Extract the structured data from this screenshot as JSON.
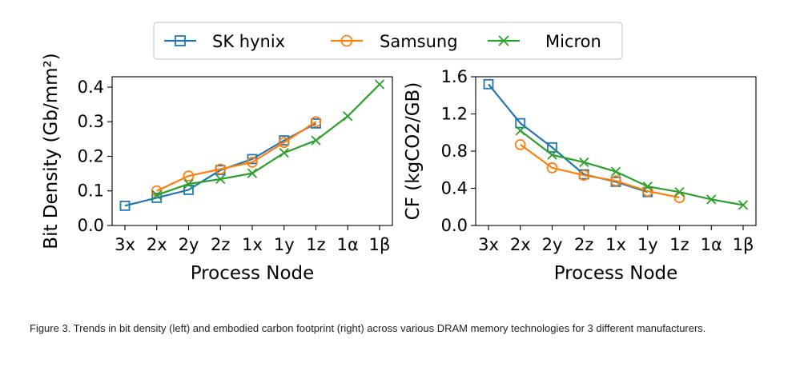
{
  "legend": [
    {
      "name": "SK hynix",
      "color": "#1f77b4",
      "marker": "square"
    },
    {
      "name": "Samsung",
      "color": "#ff7f0e",
      "marker": "circle"
    },
    {
      "name": "Micron",
      "color": "#2ca02c",
      "marker": "x"
    }
  ],
  "chart_data": [
    {
      "type": "line",
      "title": "",
      "xlabel": "Process Node",
      "ylabel": "Bit Density (Gb/mm²)",
      "categories": [
        "3x",
        "2x",
        "2y",
        "2z",
        "1x",
        "1y",
        "1z",
        "1α",
        "1β"
      ],
      "ylim": [
        0,
        0.43
      ],
      "yticks": [
        0.0,
        0.1,
        0.2,
        0.3,
        0.4
      ],
      "ytick_labels": [
        "0.0",
        "0.1",
        "0.2",
        "0.3",
        "0.4"
      ],
      "series": [
        {
          "name": "SK hynix",
          "values": [
            0.057,
            0.08,
            0.103,
            0.16,
            0.192,
            0.246,
            0.295,
            null,
            null
          ]
        },
        {
          "name": "Samsung",
          "values": [
            null,
            0.1,
            0.143,
            0.163,
            0.183,
            0.24,
            0.3,
            null,
            null
          ]
        },
        {
          "name": "Micron",
          "values": [
            null,
            0.088,
            0.12,
            0.134,
            0.151,
            0.21,
            0.246,
            0.316,
            0.408
          ]
        }
      ]
    },
    {
      "type": "line",
      "title": "",
      "xlabel": "Process Node",
      "ylabel": "CF (kgCO2/GB)",
      "categories": [
        "3x",
        "2x",
        "2y",
        "2z",
        "1x",
        "1y",
        "1z",
        "1α",
        "1β"
      ],
      "ylim": [
        0,
        1.6
      ],
      "yticks": [
        0.0,
        0.4,
        0.8,
        1.2,
        1.6
      ],
      "ytick_labels": [
        "0.0",
        "0.4",
        "0.8",
        "1.2",
        "1.6"
      ],
      "series": [
        {
          "name": "SK hynix",
          "values": [
            1.52,
            1.1,
            0.84,
            0.55,
            0.47,
            0.36,
            null,
            null,
            null
          ]
        },
        {
          "name": "Samsung",
          "values": [
            null,
            0.87,
            0.62,
            0.54,
            0.48,
            0.37,
            0.3,
            null,
            null
          ]
        },
        {
          "name": "Micron",
          "values": [
            null,
            1.02,
            0.76,
            0.68,
            0.58,
            0.42,
            0.36,
            0.28,
            0.22
          ]
        }
      ]
    }
  ],
  "caption": "Figure 3. Trends in bit density (left) and embodied carbon footprint (right) across various DRAM memory technologies for 3 different manufacturers."
}
